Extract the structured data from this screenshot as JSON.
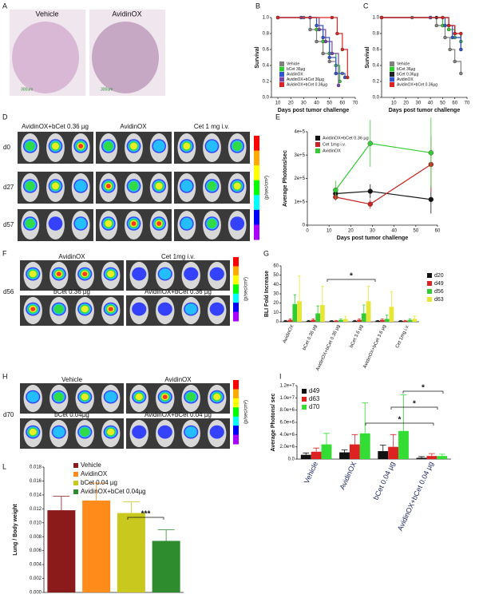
{
  "panels": [
    "A",
    "B",
    "C",
    "D",
    "E",
    "F",
    "G",
    "H",
    "I",
    "L"
  ],
  "histology": {
    "labels": [
      "Vehicle",
      "AvidinOX"
    ],
    "scale": [
      "300um",
      "300um"
    ]
  },
  "imaging_d": {
    "columns": [
      "AvidinOX+bCet 0.36 µg",
      "AvidinOX",
      "Cet 1 mg i.v."
    ],
    "rows": [
      "d0",
      "d27",
      "d57"
    ],
    "unit": "(p/sec/cm²)"
  },
  "imaging_f": {
    "labels": [
      "AvidinOX",
      "Cet 1mg i.v.",
      "bCet 0.36 µg",
      "AvidinOX+bCet 0.36 µg"
    ],
    "day": "d56",
    "unit": "(p/sec/cm²)"
  },
  "imaging_h": {
    "labels": [
      "Vehicle",
      "AvidinOX",
      "bCet 0.04µg",
      "AvidinOX+bCet 0.04 µg"
    ],
    "day": "d70",
    "unit": "(p/sec/cm²)"
  },
  "chart_data": [
    {
      "type": "line",
      "step": true,
      "ylabel": "Survival",
      "xlabel": "Days post tumor challenge",
      "xlim": [
        5,
        70
      ],
      "xticks": [
        10,
        20,
        30,
        40,
        50,
        60,
        70
      ],
      "ylim": [
        0,
        1
      ],
      "yticks": [
        {
          "value": 0,
          "label": "0.0"
        },
        0.2,
        0.4,
        0.6,
        0.8,
        {
          "value": 1,
          "label": "1.0"
        }
      ],
      "series": [
        {
          "name": "Vehicle",
          "color": "#808080",
          "x": [
            10,
            30,
            35,
            40,
            45,
            50,
            55,
            60
          ],
          "values": [
            1,
            1,
            0.85,
            0.7,
            0.55,
            0.45,
            0.3,
            0.3
          ]
        },
        {
          "name": "bCet 36µg",
          "color": "#33cc33",
          "x": [
            10,
            35,
            40,
            45,
            50,
            55,
            58
          ],
          "values": [
            1,
            1,
            0.85,
            0.7,
            0.55,
            0.4,
            0.2
          ]
        },
        {
          "name": "AvidinOX",
          "color": "#3355cc",
          "x": [
            10,
            28,
            40,
            45,
            50,
            55,
            62
          ],
          "values": [
            1,
            1,
            0.9,
            0.75,
            0.5,
            0.3,
            0.25
          ]
        },
        {
          "name": "AvidinOX+bCet 36µg",
          "color": "#7744aa",
          "x": [
            10,
            35,
            42,
            47,
            52,
            57
          ],
          "values": [
            1,
            1,
            0.85,
            0.7,
            0.55,
            0.15
          ]
        },
        {
          "name": "AvidinOX+bCet 0.36µg",
          "color": "#dd2222",
          "x": [
            10,
            52,
            56,
            60,
            64
          ],
          "values": [
            1,
            1,
            0.8,
            0.6,
            0.25
          ]
        }
      ]
    },
    {
      "type": "line",
      "step": true,
      "ylabel": "Survival",
      "xlabel": "Days post tumor challenge",
      "xlim": [
        0,
        70
      ],
      "xticks": [
        10,
        20,
        30,
        40,
        50,
        60,
        70
      ],
      "ylim": [
        0,
        1
      ],
      "yticks": [
        {
          "value": 0,
          "label": "0.0"
        },
        0.2,
        0.4,
        0.6,
        0.8,
        {
          "value": 1,
          "label": "1.0"
        }
      ],
      "series": [
        {
          "name": "Vehicle",
          "color": "#808080",
          "x": [
            0,
            25,
            45,
            52,
            56,
            60,
            65
          ],
          "values": [
            1,
            1,
            0.9,
            0.75,
            0.6,
            0.45,
            0.3
          ]
        },
        {
          "name": "bCet 36µg",
          "color": "#33cc33",
          "x": [
            0,
            40,
            50,
            55,
            60,
            65
          ],
          "values": [
            1,
            1,
            0.9,
            0.85,
            0.75,
            0.7
          ]
        },
        {
          "name": "bCet 0.36µg",
          "color": "#222222",
          "x": [
            0,
            45,
            55,
            60,
            65
          ],
          "values": [
            1,
            1,
            0.9,
            0.8,
            0.6
          ]
        },
        {
          "name": "AvidinOX",
          "color": "#3355cc",
          "x": [
            0,
            40,
            52,
            58,
            65
          ],
          "values": [
            1,
            1,
            0.9,
            0.75,
            0.6
          ]
        },
        {
          "name": "AvidinOX+bCet 0.36µg",
          "color": "#dd2222",
          "x": [
            0,
            50,
            55,
            60,
            65
          ],
          "values": [
            1,
            1,
            0.9,
            0.8,
            0.8
          ]
        }
      ]
    },
    {
      "type": "line",
      "ylabel": "Average Photons/sec",
      "xlabel": "Days post tumor challenge",
      "xlim": [
        0,
        60
      ],
      "xticks": [
        0,
        10,
        20,
        30,
        40,
        50,
        60
      ],
      "ylim": [
        0,
        400000
      ],
      "yticks": [
        0,
        {
          "value": 100000,
          "label": "1e+5"
        },
        {
          "value": 200000,
          "label": "2e+5"
        },
        {
          "value": 300000,
          "label": "3e+5"
        },
        {
          "value": 400000,
          "label": "4e+5"
        }
      ],
      "series": [
        {
          "name": "AvidinOX+bCet 0.36 µg",
          "color": "#111111",
          "x": [
            13,
            29,
            57
          ],
          "values": [
            135000,
            145000,
            110000
          ],
          "errors": [
            20000,
            30000,
            60000
          ]
        },
        {
          "name": "Cet 1mg i.v.",
          "color": "#cc2222",
          "x": [
            13,
            29,
            57
          ],
          "values": [
            120000,
            90000,
            260000
          ],
          "errors": [
            15000,
            20000,
            120000
          ]
        },
        {
          "name": "AvidinOX",
          "color": "#33cc33",
          "x": [
            13,
            29,
            57
          ],
          "values": [
            150000,
            350000,
            310000
          ],
          "errors": [
            40000,
            100000,
            150000
          ]
        }
      ]
    },
    {
      "type": "bar",
      "ylabel": "BLI Fold Increase",
      "categories": [
        "AvidinOX",
        "bCet 0.36 µg",
        "AvidinOX+bCet 0.36 µg",
        "bCet 3.6 µg",
        "AvidinOX+bCet 3.6 µg",
        "Cet 1mg i.v."
      ],
      "ylim": [
        0,
        60
      ],
      "yticks": [
        0,
        10,
        20,
        30,
        40,
        50,
        60
      ],
      "series": [
        {
          "name": "d20",
          "color": "#111111",
          "values": [
            1,
            1,
            1,
            1,
            1,
            1
          ],
          "errors": [
            0.5,
            0.5,
            0.3,
            0.5,
            0.4,
            0.3
          ]
        },
        {
          "name": "d49",
          "color": "#dd2222",
          "values": [
            2,
            2,
            1,
            2,
            2,
            1
          ],
          "errors": [
            1,
            1,
            0.5,
            1,
            1,
            0.5
          ]
        },
        {
          "name": "d56",
          "color": "#33cc33",
          "values": [
            19,
            9,
            2,
            9,
            3,
            2
          ],
          "errors": [
            10,
            8,
            1,
            9,
            4,
            1
          ]
        },
        {
          "name": "d63",
          "color": "#e6e633",
          "values": [
            22,
            18,
            3,
            22,
            16,
            3
          ],
          "errors": [
            27,
            20,
            3,
            16,
            16,
            3
          ]
        }
      ],
      "annotations": [
        "*"
      ]
    },
    {
      "type": "bar",
      "ylabel": "Average Photons/ sec",
      "categories": [
        "Vehicle",
        "AvidinOX",
        "bCet 0.04 µg",
        "AvidinOX+bCet 0.04 µg"
      ],
      "ylim": [
        0,
        12000000
      ],
      "yticks": [
        {
          "value": 0,
          "label": "0.0"
        },
        {
          "value": 2000000,
          "label": "2.0e+6"
        },
        {
          "value": 4000000,
          "label": "4.0e+6"
        },
        {
          "value": 6000000,
          "label": "6.0e+6"
        },
        {
          "value": 8000000,
          "label": "8.0e+6"
        },
        {
          "value": 10000000,
          "label": "1.0e+7"
        },
        {
          "value": 12000000,
          "label": "1.2e+7"
        }
      ],
      "series": [
        {
          "name": "d49",
          "color": "#111111",
          "values": [
            700000,
            1100000,
            1300000,
            200000
          ],
          "errors": [
            300000,
            400000,
            1000000,
            200000
          ]
        },
        {
          "name": "d63",
          "color": "#dd2222",
          "values": [
            1200000,
            2400000,
            2000000,
            500000
          ],
          "errors": [
            600000,
            1600000,
            2000000,
            400000
          ]
        },
        {
          "name": "d70",
          "color": "#33dd33",
          "values": [
            2400000,
            4200000,
            4600000,
            500000
          ],
          "errors": [
            1800000,
            5000000,
            5900000,
            300000
          ]
        }
      ],
      "annotations": [
        "*",
        "*",
        "*"
      ]
    },
    {
      "type": "bar",
      "ylabel": "Lung / Body weight",
      "categories": [
        "Vehicle",
        "AvidinOX",
        "bCet 0.04 µg",
        "AvidinOX+bCet 0.04µg"
      ],
      "colors": [
        "#8b1a1a",
        "#ff8c1a",
        "#c8c81e",
        "#2e8b2e"
      ],
      "values": [
        0.0118,
        0.0132,
        0.0114,
        0.0074
      ],
      "errors": [
        0.002,
        0.0025,
        0.0016,
        0.0016
      ],
      "ylim": [
        0,
        0.018
      ],
      "yticks": [
        {
          "value": 0,
          "label": "0.000"
        },
        {
          "value": 0.002,
          "label": "0.002"
        },
        {
          "value": 0.004,
          "label": "0.004"
        },
        {
          "value": 0.006,
          "label": "0.006"
        },
        {
          "value": 0.008,
          "label": "0.008"
        },
        {
          "value": 0.01,
          "label": "0.010"
        },
        {
          "value": 0.012,
          "label": "0.012"
        },
        {
          "value": 0.014,
          "label": "0.014"
        },
        {
          "value": 0.016,
          "label": "0.016"
        },
        {
          "value": 0.018,
          "label": "0.018"
        }
      ],
      "annotations": [
        "***"
      ]
    }
  ]
}
